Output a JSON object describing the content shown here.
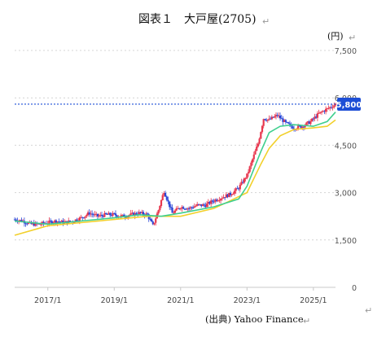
{
  "chart_data": {
    "type": "candlestick",
    "title": "図表１　大戸屋(2705)",
    "unit_label": "(円)",
    "source": "(出典) Yahoo Finance",
    "y_ticks": [
      "7,500",
      "6,000",
      "4,500",
      "3,000",
      "1,500",
      "0"
    ],
    "x_ticks": [
      "2017/1",
      "2019/1",
      "2021/1",
      "2023/1",
      "2025/1"
    ],
    "ylim": [
      0,
      7500
    ],
    "xlim": [
      "2016/1",
      "2025/9"
    ],
    "grid": "horizontal dotted",
    "last_price_label": "5,800",
    "last_price": 5800,
    "colors": {
      "up": "#e8384f",
      "down": "#2b47d6",
      "ma_short": "#3ecf8e",
      "ma_long": "#f2d02b",
      "last_price": "#1e4fd6"
    },
    "series": [
      {
        "kind": "price",
        "x": [
          "2016/1",
          "2016/4",
          "2016/7",
          "2016/10",
          "2017/1",
          "2017/4",
          "2017/7",
          "2017/10",
          "2018/1",
          "2018/4",
          "2018/7",
          "2018/10",
          "2019/1",
          "2019/4",
          "2019/7",
          "2019/10",
          "2020/1",
          "2020/3",
          "2020/5",
          "2020/7",
          "2020/10",
          "2021/1",
          "2021/4",
          "2021/7",
          "2021/10",
          "2022/1",
          "2022/4",
          "2022/7",
          "2022/10",
          "2023/1",
          "2023/3",
          "2023/5",
          "2023/7",
          "2023/9",
          "2023/12",
          "2024/3",
          "2024/6",
          "2024/9",
          "2024/12",
          "2025/3",
          "2025/6",
          "2025/9"
        ],
        "values": [
          2150,
          2100,
          2000,
          2000,
          2050,
          2100,
          2050,
          2100,
          2200,
          2350,
          2250,
          2300,
          2300,
          2250,
          2300,
          2350,
          2300,
          1950,
          2450,
          3050,
          2350,
          2550,
          2500,
          2600,
          2600,
          2750,
          2850,
          2950,
          3150,
          3550,
          4050,
          4550,
          5350,
          5300,
          5450,
          5200,
          5050,
          5100,
          5250,
          5500,
          5650,
          5800
        ]
      },
      {
        "name": "",
        "kind": "ma_short",
        "x": [
          "2016/1",
          "2017/1",
          "2018/1",
          "2019/1",
          "2019/10",
          "2020/6",
          "2021/1",
          "2022/1",
          "2022/10",
          "2023/1",
          "2023/6",
          "2023/9",
          "2024/1",
          "2024/6",
          "2025/1",
          "2025/6",
          "2025/9"
        ],
        "values": [
          2100,
          2000,
          2100,
          2200,
          2300,
          2250,
          2350,
          2550,
          2800,
          3200,
          4300,
          4900,
          5100,
          5150,
          5100,
          5250,
          5550
        ]
      },
      {
        "name": "",
        "kind": "ma_long",
        "x": [
          "2016/1",
          "2017/1",
          "2018/1",
          "2019/1",
          "2020/1",
          "2020/6",
          "2021/1",
          "2022/1",
          "2022/6",
          "2023/1",
          "2023/6",
          "2023/9",
          "2024/1",
          "2024/6",
          "2025/1",
          "2025/6",
          "2025/9"
        ],
        "values": [
          1650,
          1950,
          2050,
          2150,
          2250,
          2250,
          2250,
          2500,
          2700,
          3000,
          3900,
          4400,
          4800,
          5000,
          5050,
          5100,
          5300
        ]
      }
    ]
  },
  "markers": {
    "return_glyph": "↵",
    "legend_end_glyph": "↵"
  }
}
